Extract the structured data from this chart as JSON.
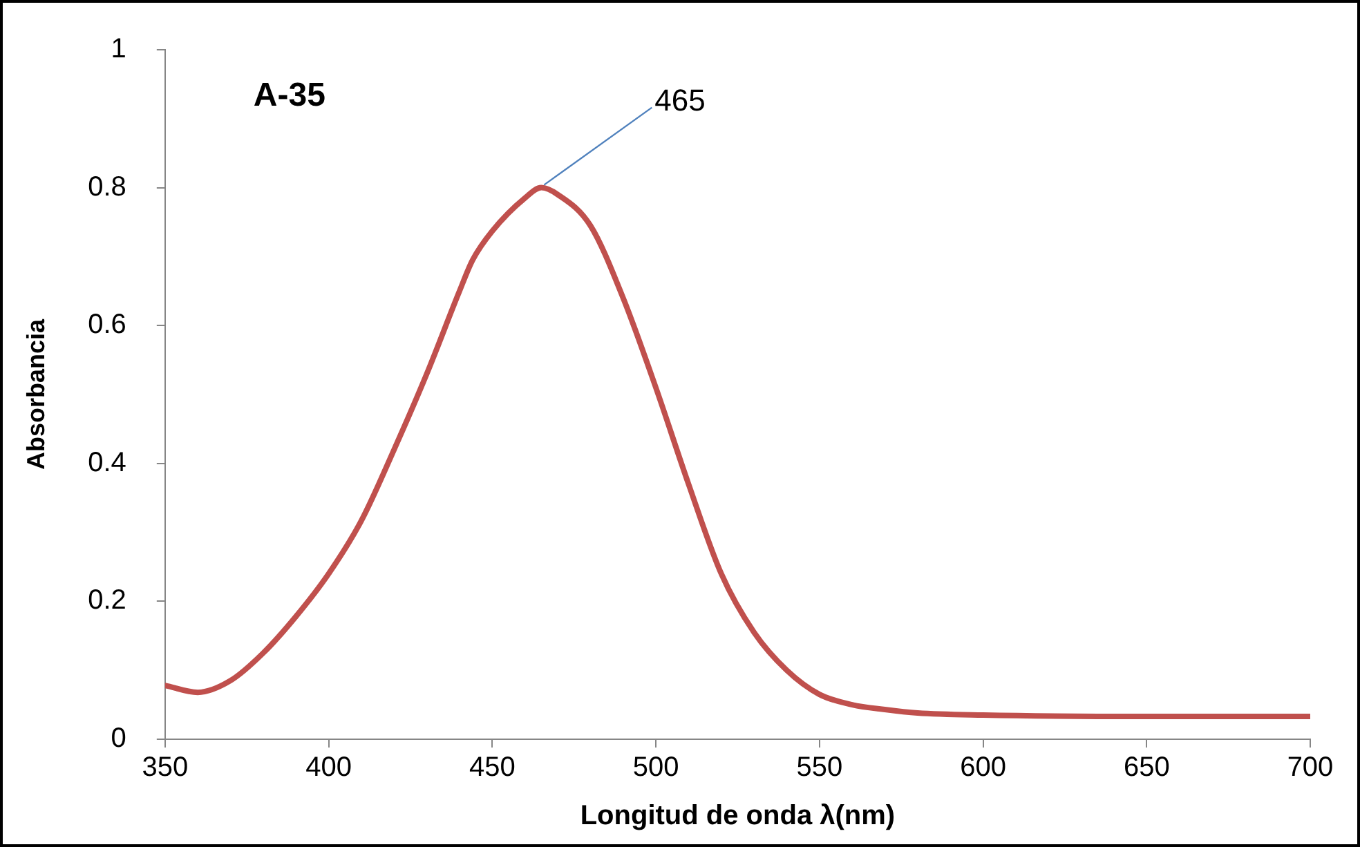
{
  "chart_data": {
    "type": "line",
    "title": "A-35",
    "xlabel": "Longitud de onda λ(nm)",
    "ylabel": "Absorbancia",
    "x": [
      350,
      360,
      370,
      380,
      390,
      400,
      410,
      420,
      430,
      440,
      444,
      450,
      460,
      465,
      470,
      480,
      490,
      500,
      510,
      520,
      530,
      540,
      550,
      560,
      570,
      580,
      600,
      650,
      700
    ],
    "series": [
      {
        "color": "#c0504d",
        "values": [
          0.078,
          0.068,
          0.085,
          0.125,
          0.178,
          0.24,
          0.317,
          0.42,
          0.53,
          0.65,
          0.695,
          0.737,
          0.785,
          0.8,
          0.79,
          0.745,
          0.64,
          0.51,
          0.37,
          0.24,
          0.155,
          0.1,
          0.065,
          0.05,
          0.043,
          0.038,
          0.035,
          0.033,
          0.033
        ]
      }
    ],
    "xlim": [
      350,
      700
    ],
    "xticks": [
      350,
      400,
      450,
      500,
      550,
      600,
      650,
      700
    ],
    "ylim": [
      0,
      1
    ],
    "yticks": [
      0,
      0.2,
      0.4,
      0.6,
      0.8,
      1
    ],
    "annotations": [
      {
        "text": "465",
        "x": 465,
        "y": 0.8
      }
    ],
    "grid": false,
    "legend": false,
    "marker": "none",
    "line_style": "solid"
  }
}
